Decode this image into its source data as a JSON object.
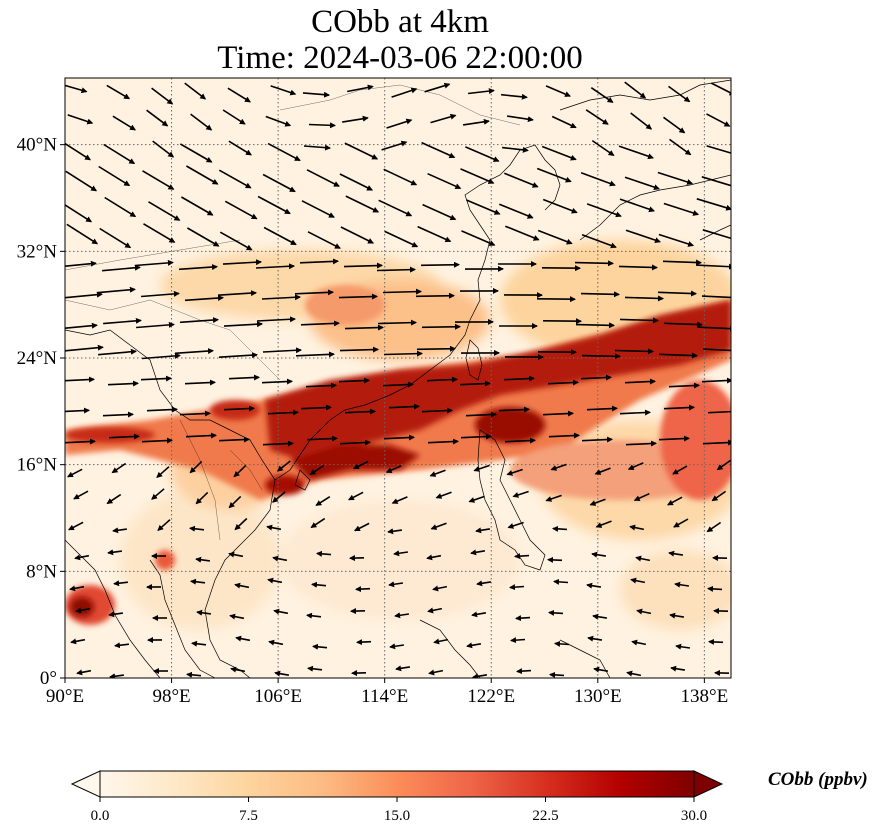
{
  "title": {
    "line1": "CObb at 4km",
    "line2": "Time: 2024-03-06 22:00:00"
  },
  "map": {
    "lon_range": [
      90,
      140
    ],
    "lat_range": [
      0,
      45
    ],
    "lon_ticks": [
      "90°E",
      "98°E",
      "106°E",
      "114°E",
      "122°E",
      "130°E",
      "138°E"
    ],
    "lat_ticks": [
      "0°",
      "8°N",
      "16°N",
      "24°N",
      "32°N",
      "40°N"
    ],
    "gridlines": "dotted",
    "colormap": "OrRd",
    "vectors": "wind arrows"
  },
  "colorbar": {
    "label": "CObb (ppbv)",
    "min": 0.0,
    "max": 30.0,
    "ticks": [
      "0.0",
      "7.5",
      "15.0",
      "22.5",
      "30.0"
    ],
    "extend": "both",
    "colors": [
      "#fff7ec",
      "#fee8c8",
      "#fdd49e",
      "#fdbb84",
      "#fc8d59",
      "#ef6548",
      "#d7301f",
      "#b30000",
      "#7f0000"
    ]
  }
}
